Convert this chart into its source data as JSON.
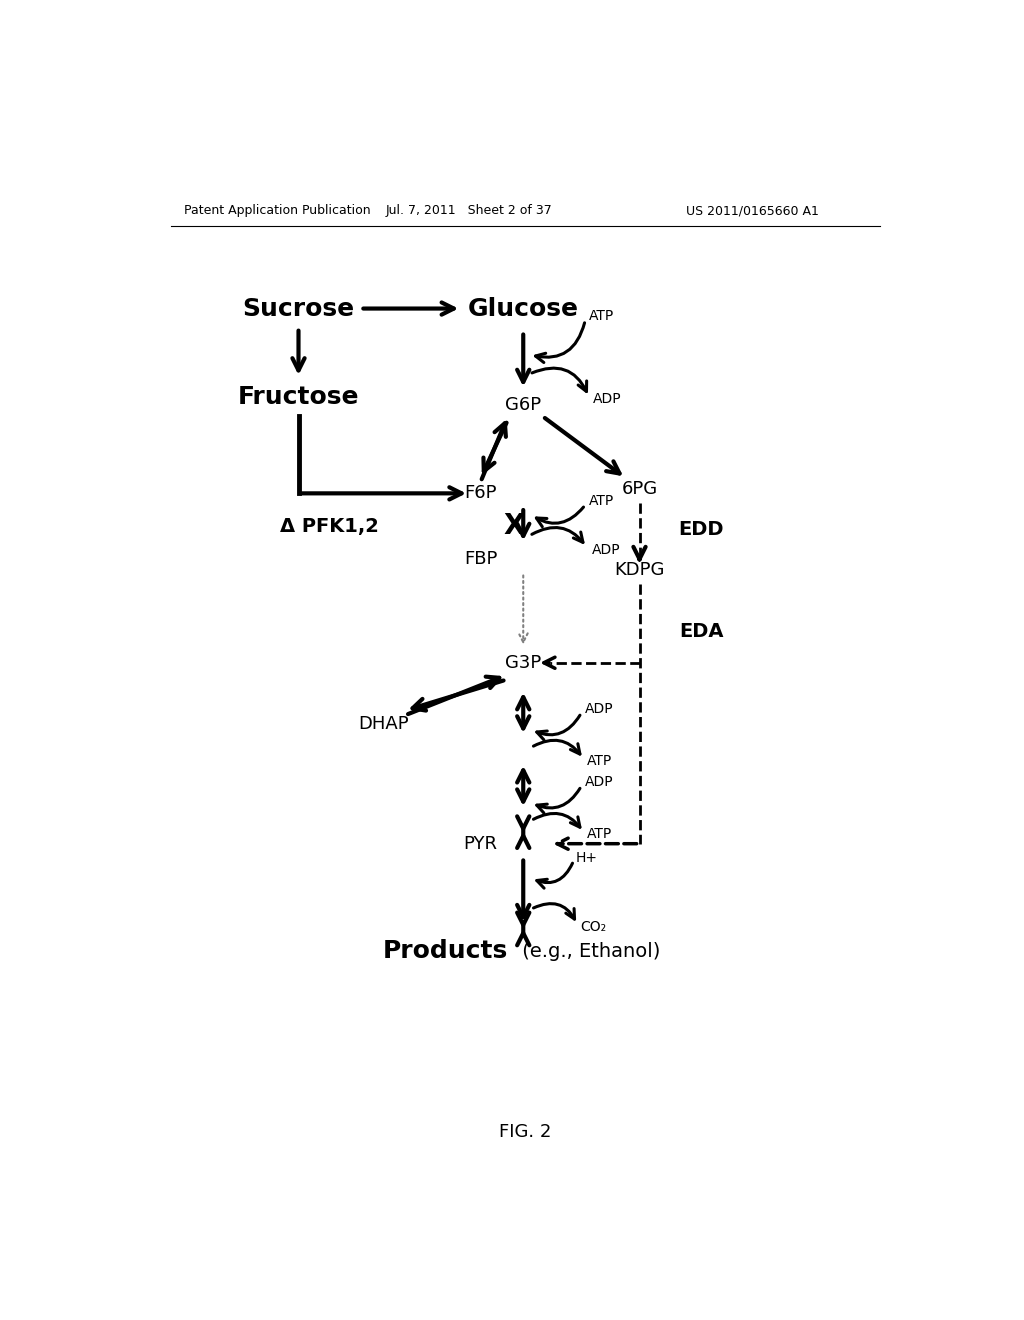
{
  "bg_color": "#ffffff",
  "header_left": "Patent Application Publication",
  "header_center": "Jul. 7, 2011   Sheet 2 of 37",
  "header_right": "US 2011/0165660 A1",
  "footer": "FIG. 2"
}
